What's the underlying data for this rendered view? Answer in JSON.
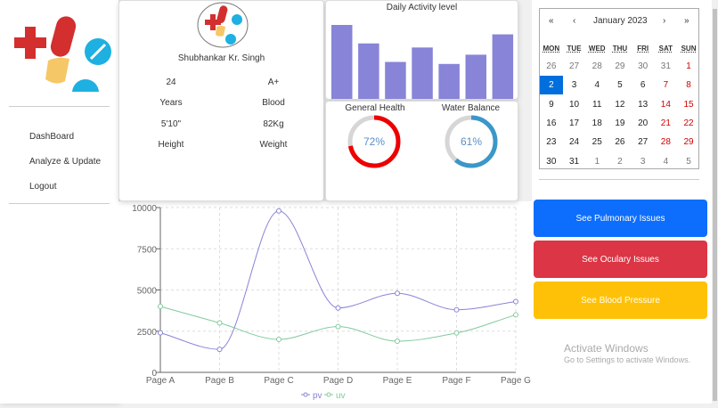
{
  "sidebar": {
    "items": [
      {
        "label": "DashBoard"
      },
      {
        "label": "Analyze & Update"
      },
      {
        "label": "Logout"
      }
    ]
  },
  "profile": {
    "name": "Shubhankar Kr. Singh",
    "age": "24",
    "age_label": "Years",
    "blood": "A+",
    "blood_label": "Blood",
    "height": "5'10\"",
    "height_label": "Height",
    "weight": "82Kg",
    "weight_label": "Weight"
  },
  "activity": {
    "title": "Daily Activity level",
    "bar_color": "#8884d8",
    "values": [
      4000,
      3000,
      2000,
      2780,
      1890,
      2390,
      3490
    ]
  },
  "health": {
    "general": {
      "label": "General Health",
      "value": 72,
      "text": "72%",
      "color": "#ee0000"
    },
    "water": {
      "label": "Water Balance",
      "value": 61,
      "text": "61%",
      "color": "#3b97c9"
    }
  },
  "calendar": {
    "title": "January 2023",
    "nav": [
      "«",
      "‹",
      "›",
      "»"
    ],
    "weekdays": [
      "MON",
      "TUE",
      "WED",
      "THU",
      "FRI",
      "SAT",
      "SUN"
    ],
    "weeks": [
      [
        "26",
        "27",
        "28",
        "29",
        "30",
        "31",
        "1"
      ],
      [
        "2",
        "3",
        "4",
        "5",
        "6",
        "7",
        "8"
      ],
      [
        "9",
        "10",
        "11",
        "12",
        "13",
        "14",
        "15"
      ],
      [
        "16",
        "17",
        "18",
        "19",
        "20",
        "21",
        "22"
      ],
      [
        "23",
        "24",
        "25",
        "26",
        "27",
        "28",
        "29"
      ],
      [
        "30",
        "31",
        "1",
        "2",
        "3",
        "4",
        "5"
      ]
    ],
    "selected": "2"
  },
  "buttons": [
    {
      "label": "See Pulmonary Issues",
      "color": "#0d6efd"
    },
    {
      "label": "See Oculary Issues",
      "color": "#dc3545"
    },
    {
      "label": "See Blood Pressure",
      "color": "#ffc107"
    }
  ],
  "watermark": {
    "title": "Activate Windows",
    "subtitle": "Go to Settings to activate Windows."
  },
  "chart_data": {
    "type": "line",
    "categories": [
      "Page A",
      "Page B",
      "Page C",
      "Page D",
      "Page E",
      "Page F",
      "Page G"
    ],
    "series": [
      {
        "name": "pv",
        "values": [
          2400,
          1398,
          9800,
          3908,
          4800,
          3800,
          4300
        ],
        "color": "#8884d8"
      },
      {
        "name": "uv",
        "values": [
          4000,
          3000,
          2000,
          2780,
          1890,
          2390,
          3490
        ],
        "color": "#82ca9d"
      }
    ],
    "ylim": [
      0,
      10000
    ],
    "yticks": [
      0,
      2500,
      5000,
      7500,
      10000
    ],
    "grid": true,
    "legend": "bottom"
  }
}
